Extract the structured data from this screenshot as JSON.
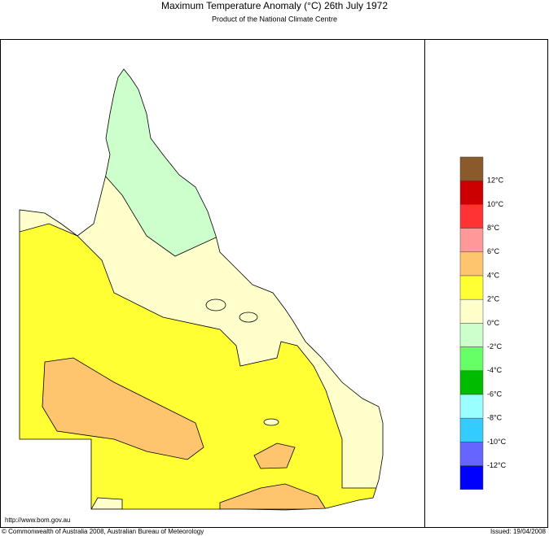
{
  "header": {
    "title": "Maximum Temperature Anomaly (°C)  26th July 1972",
    "subtitle": "Product of the National Climate Centre"
  },
  "legend": {
    "colors": [
      "#8b5a2b",
      "#cc0000",
      "#ff3333",
      "#ff9999",
      "#ffc46e",
      "#ffff33",
      "#ffffcc",
      "#ccffcc",
      "#66ff66",
      "#00bb00",
      "#99ffff",
      "#33ccff",
      "#6666ff",
      "#0000ff"
    ],
    "labels": [
      "12°C",
      "10°C",
      "8°C",
      "6°C",
      "4°C",
      "2°C",
      "0°C",
      "-2°C",
      "-4°C",
      "-6°C",
      "-8°C",
      "-10°C",
      "-12°C"
    ]
  },
  "footer": {
    "url": "http://www.bom.gov.au",
    "copyright": "© Commonwealth of Australia 2008, Australian Bureau of Meteorology",
    "issued": "Issued: 19/04/2008"
  }
}
